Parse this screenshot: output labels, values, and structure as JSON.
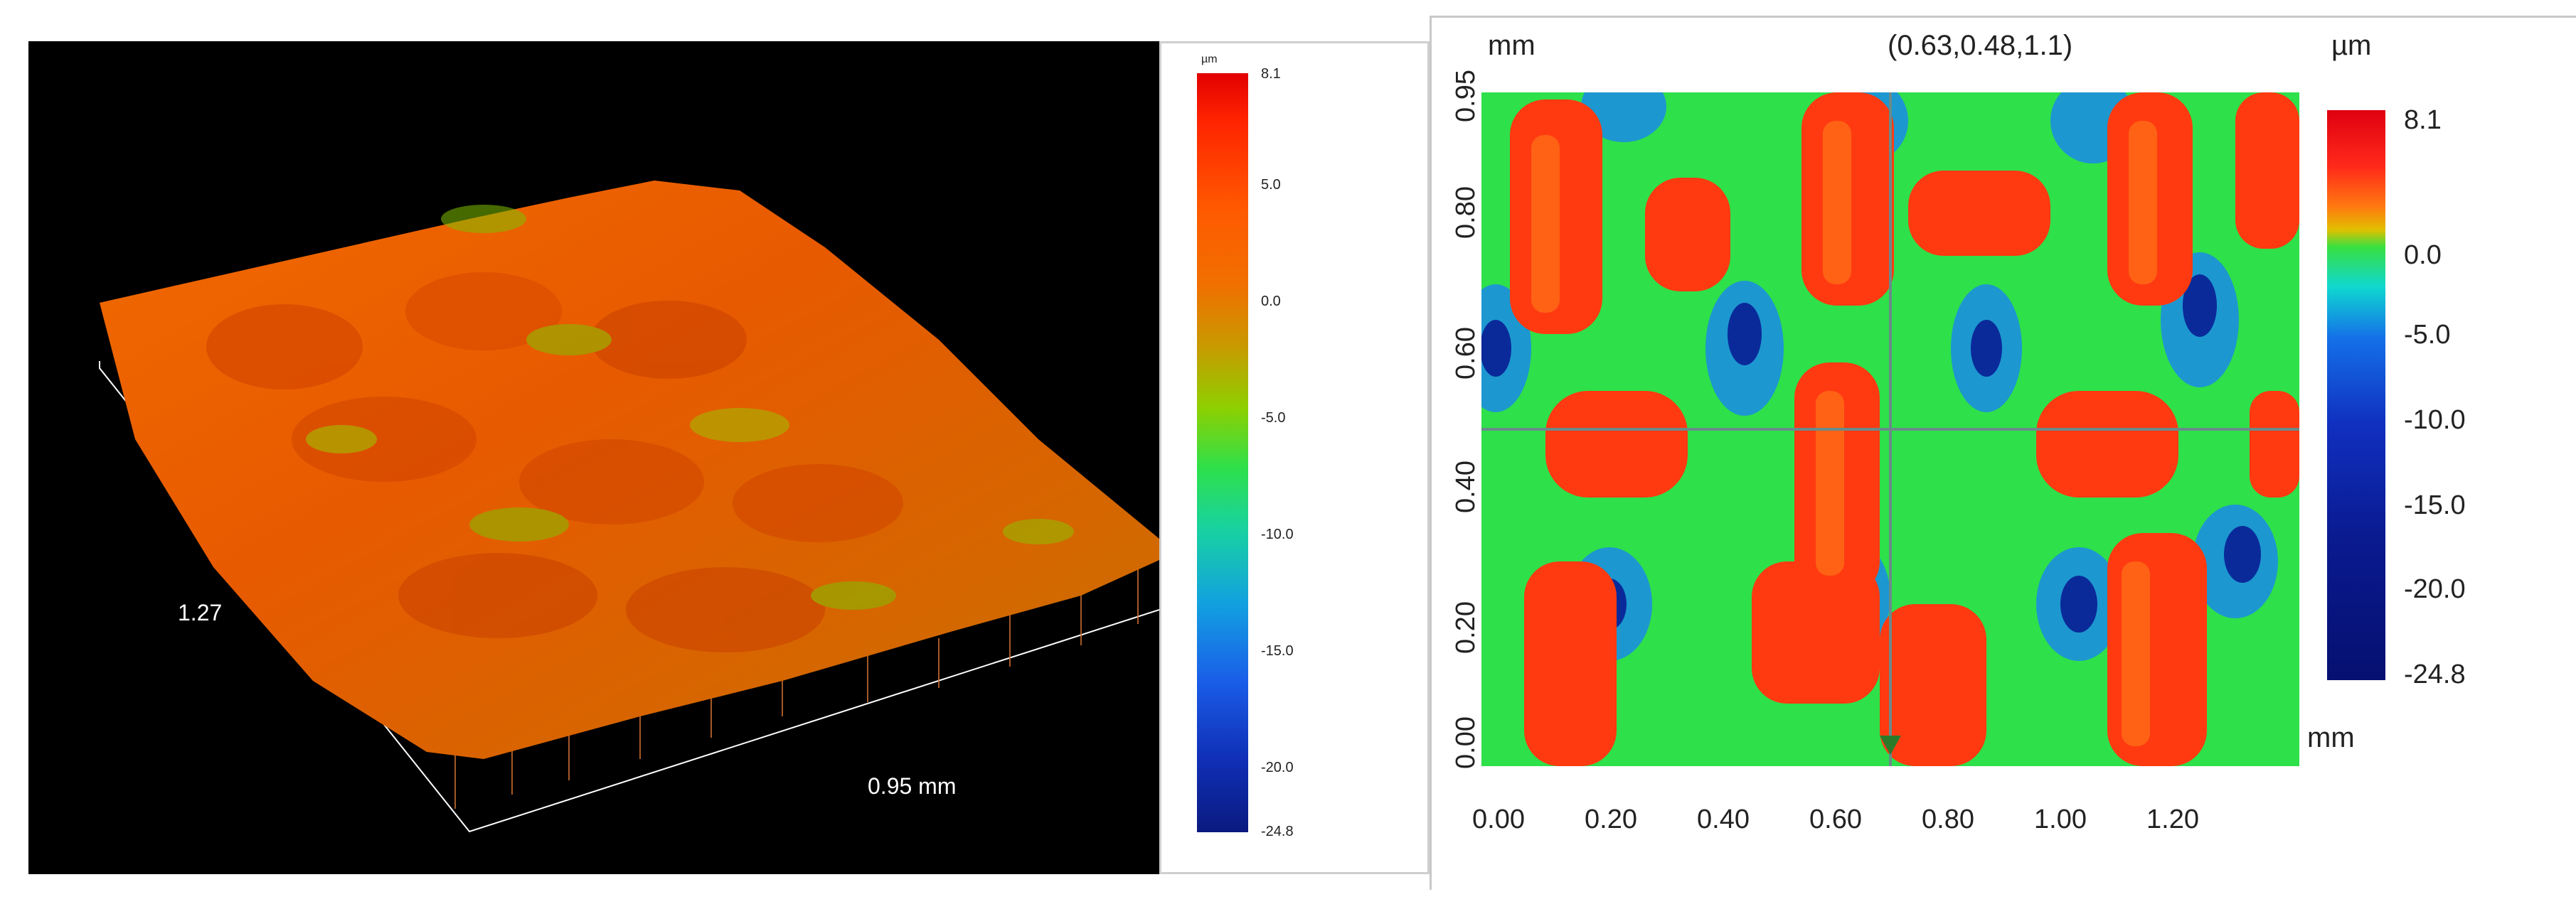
{
  "view3d": {
    "length_label": "1.27",
    "width_label": "0.95 mm",
    "legend": {
      "unit": "µm",
      "ticks": [
        "8.1",
        "5.0",
        "0.0",
        "-5.0",
        "-10.0",
        "-15.0",
        "-20.0",
        "-24.8"
      ]
    }
  },
  "view2d": {
    "y_unit": "mm",
    "x_unit": "mm",
    "z_unit": "µm",
    "cursor_readout": "(0.63,0.48,1.1)",
    "x_ticks": [
      "0.00",
      "0.20",
      "0.40",
      "0.60",
      "0.80",
      "1.00",
      "1.20"
    ],
    "y_ticks": [
      "0.00",
      "0.20",
      "0.40",
      "0.60",
      "0.80",
      "0.95"
    ],
    "legend": {
      "ticks": [
        "8.1",
        "0.0",
        "-5.0",
        "-10.0",
        "-15.0",
        "-20.0",
        "-24.8"
      ]
    }
  },
  "colors": {
    "high": "#ff2200",
    "mid": "#2ee04a",
    "low": "#0a1a80",
    "background_3d": "#000000"
  }
}
